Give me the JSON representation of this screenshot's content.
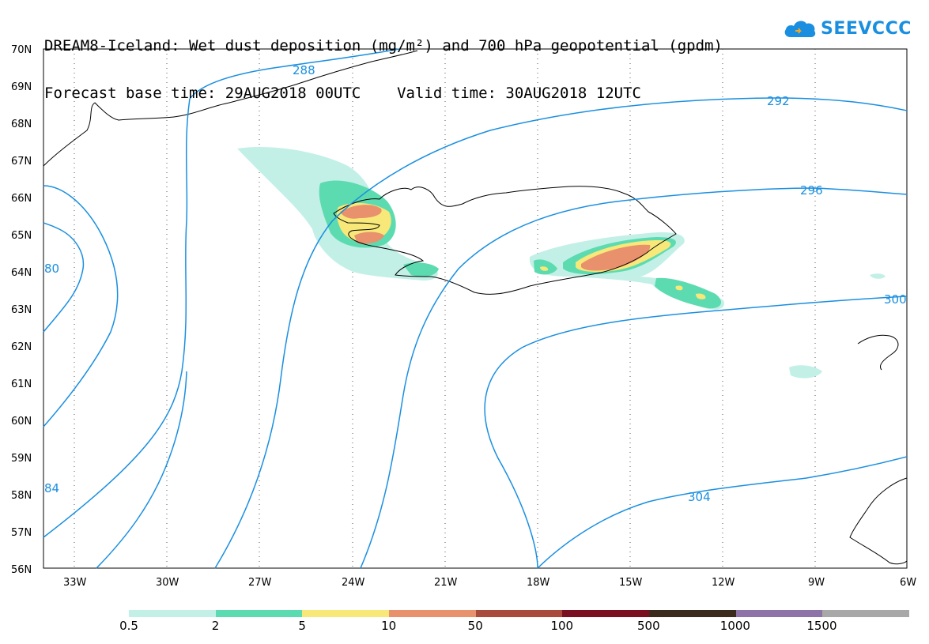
{
  "header": {
    "title_line1": "DREAM8-Iceland: Wet dust deposition (mg/m²) and 700 hPa geopotential (gpdm)",
    "title_line2": "Forecast base time: 29AUG2018 00UTC    Valid time: 30AUG2018 12UTC"
  },
  "logo": {
    "text": "SEEVCCC",
    "icon": "cloud-icon"
  },
  "map": {
    "projection": "lat-lon",
    "lon_range": [
      -34,
      -6
    ],
    "lat_range": [
      56,
      70
    ],
    "lat_labels": [
      "70N",
      "69N",
      "68N",
      "67N",
      "66N",
      "65N",
      "64N",
      "63N",
      "62N",
      "61N",
      "60N",
      "59N",
      "58N",
      "57N",
      "56N"
    ],
    "lon_labels": [
      "33W",
      "30W",
      "27W",
      "24W",
      "21W",
      "18W",
      "15W",
      "12W",
      "9W",
      "6W"
    ],
    "gridlines": "dotted",
    "contour_color": "#1a8fe0",
    "contour_labels": [
      "288",
      "292",
      "296",
      "300",
      "304",
      "80",
      "84"
    ]
  },
  "legend": {
    "labels": [
      "0.5",
      "2",
      "5",
      "10",
      "50",
      "100",
      "500",
      "1000",
      "1500"
    ],
    "colors": [
      "#c2f0e6",
      "#5ddbb0",
      "#f7e879",
      "#e9906d",
      "#a84a3c",
      "#7a0f22",
      "#3b2b1e",
      "#8e73a8",
      "#a8a8a8"
    ]
  }
}
